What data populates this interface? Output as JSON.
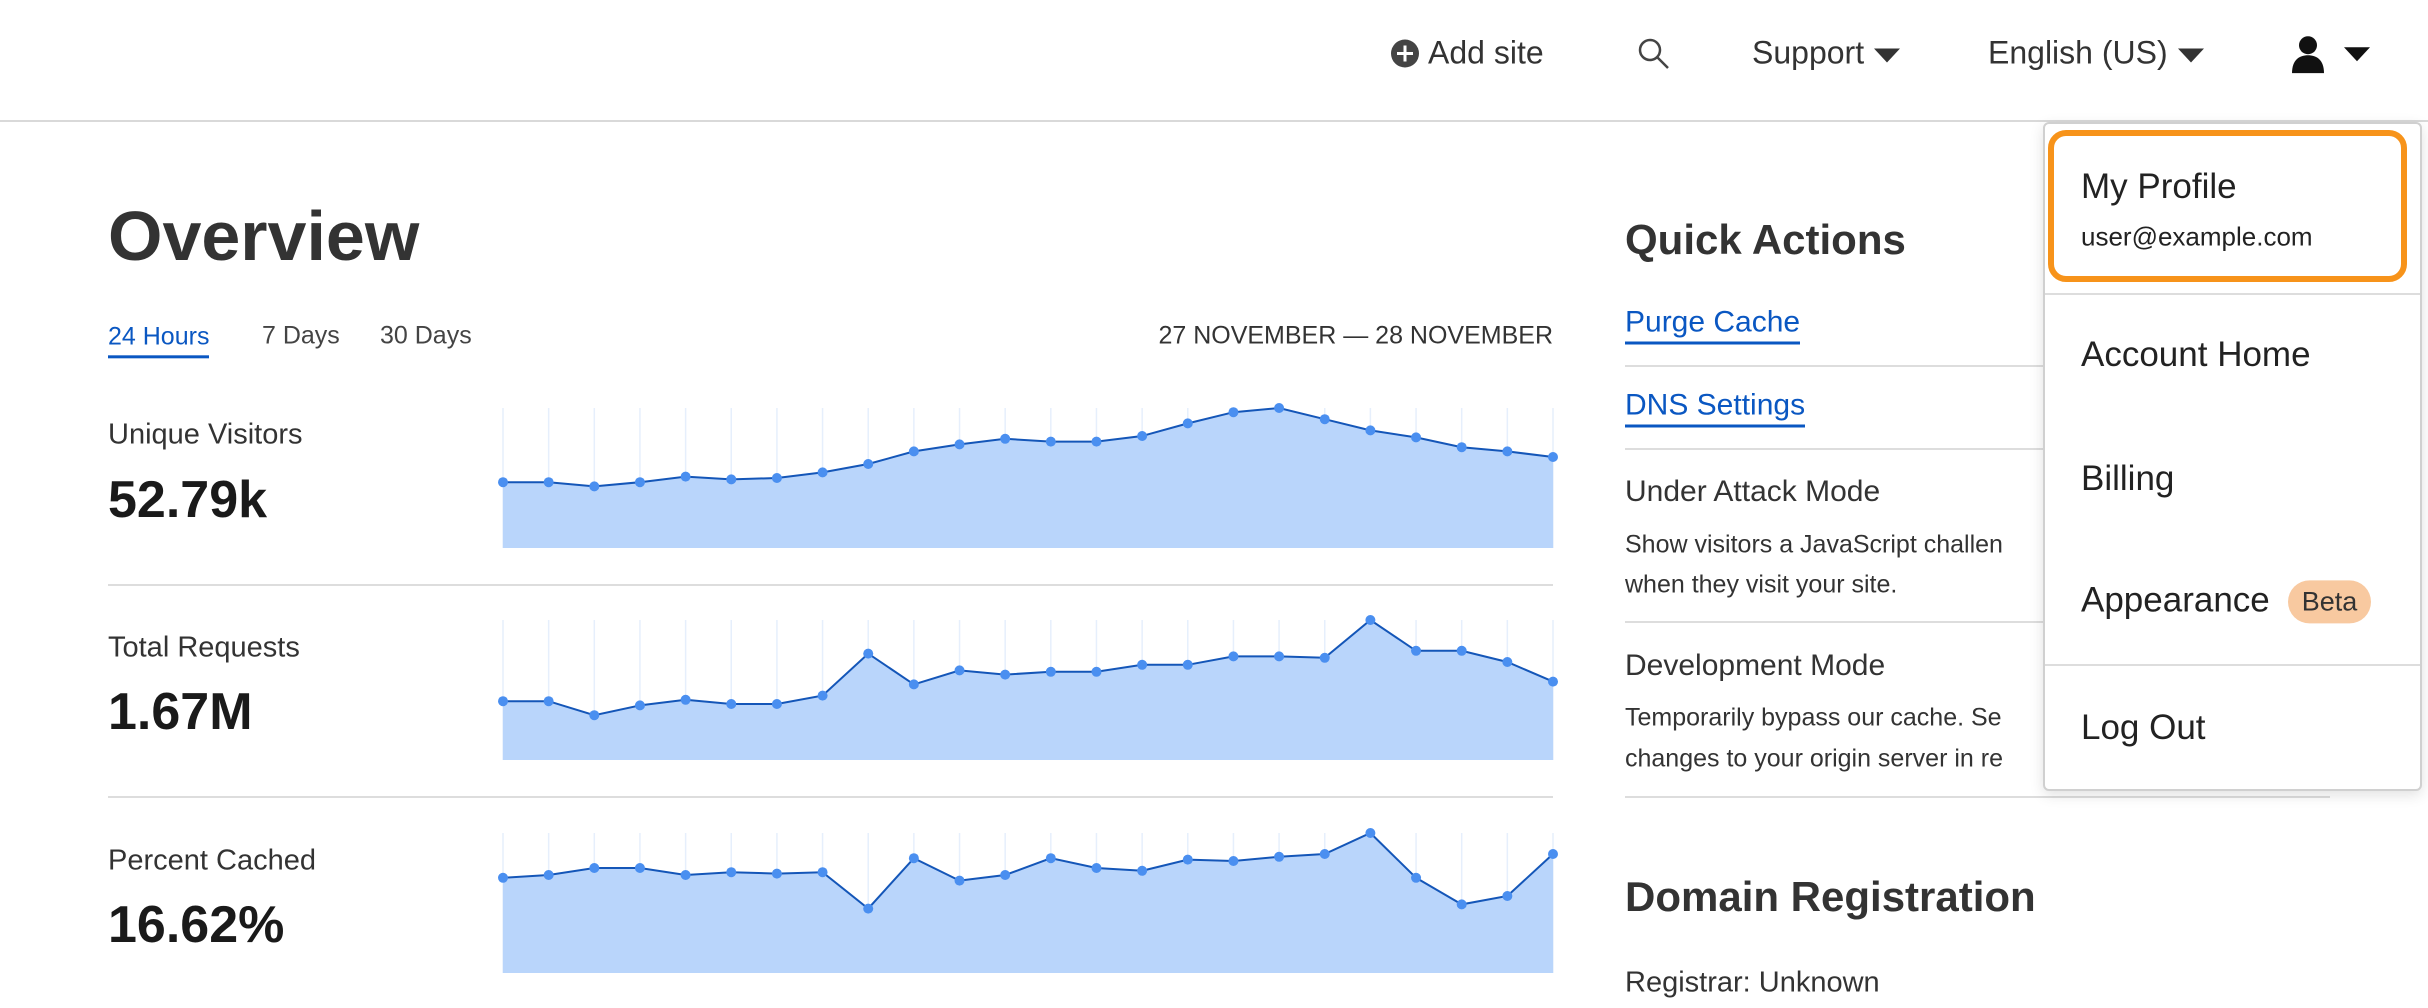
{
  "header": {
    "add_site": "Add site",
    "support": "Support",
    "language": "English (US)"
  },
  "overview": {
    "title": "Overview",
    "tabs": [
      {
        "label": "24 Hours",
        "active": true
      },
      {
        "label": "7 Days",
        "active": false
      },
      {
        "label": "30 Days",
        "active": false
      }
    ],
    "date_range": "27 NOVEMBER — 28 NOVEMBER",
    "metrics": [
      {
        "label": "Unique Visitors",
        "value": "52.79k"
      },
      {
        "label": "Total Requests",
        "value": "1.67M"
      },
      {
        "label": "Percent Cached",
        "value": "16.62%"
      }
    ]
  },
  "chart_data": [
    {
      "type": "area",
      "series": [
        {
          "values": [
            47,
            47,
            44,
            47,
            51,
            49,
            50,
            54,
            60,
            69,
            74,
            78,
            76,
            76,
            80,
            89,
            97,
            100,
            92,
            84,
            79,
            72,
            69,
            65
          ]
        }
      ],
      "ylim": [
        0,
        100
      ],
      "grid": "vertical",
      "line_color": "#1456b8",
      "fill_color": "#b9d5fb",
      "point_color": "#4a8ff0"
    },
    {
      "type": "area",
      "series": [
        {
          "values": [
            42,
            42,
            32,
            39,
            43,
            40,
            40,
            46,
            76,
            54,
            64,
            61,
            63,
            63,
            68,
            68,
            74,
            74,
            73,
            100,
            78,
            78,
            70,
            56
          ]
        }
      ],
      "ylim": [
        0,
        100
      ],
      "grid": "vertical",
      "line_color": "#1456b8",
      "fill_color": "#b9d5fb",
      "point_color": "#4a8ff0"
    },
    {
      "type": "area",
      "series": [
        {
          "values": [
            68,
            70,
            75,
            75,
            70,
            72,
            71,
            72,
            46,
            82,
            66,
            70,
            82,
            75,
            73,
            81,
            80,
            83,
            85,
            100,
            68,
            49,
            55,
            85
          ]
        }
      ],
      "ylim": [
        0,
        100
      ],
      "grid": "vertical",
      "line_color": "#1456b8",
      "fill_color": "#b9d5fb",
      "point_color": "#4a8ff0"
    }
  ],
  "quick_actions": {
    "title": "Quick Actions",
    "purge_cache": "Purge Cache",
    "dns_settings": "DNS Settings",
    "under_attack_title": "Under Attack Mode",
    "under_attack_desc1": "Show visitors a JavaScript challen",
    "under_attack_desc2": "when they visit your site.",
    "dev_mode_title": "Development Mode",
    "dev_mode_desc1": "Temporarily bypass our cache. Se",
    "dev_mode_desc2": "changes to your origin server in re"
  },
  "domain_registration": {
    "title": "Domain Registration",
    "registrar": "Registrar: Unknown"
  },
  "user_menu": {
    "my_profile": "My Profile",
    "email": "user@example.com",
    "account_home": "Account Home",
    "billing": "Billing",
    "appearance": "Appearance",
    "beta_badge": "Beta",
    "log_out": "Log Out",
    "highlight_color": "#f7931a"
  }
}
